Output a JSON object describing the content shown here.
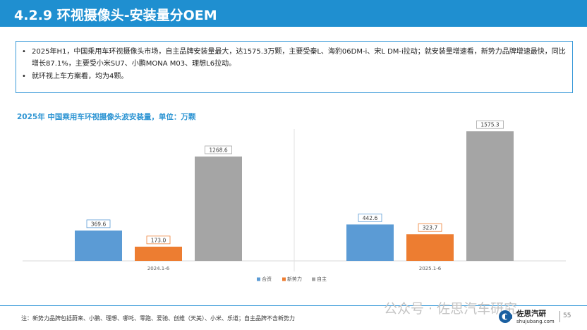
{
  "header": {
    "title": "4.2.9 环视摄像头-安装量分OEM"
  },
  "bullets": [
    {
      "dot": "•",
      "text": "2025年H1，中国乘用车环视摄像头市场，自主品牌安装量最大，达1575.3万颗，主要受秦L、海豹06DM-i、宋L DM-i拉动；就安装量增速看，新势力品牌增速最快，同比增长87.1%，主要受小米SU7、小鹏MONA M03、理想L6拉动。"
    },
    {
      "dot": "•",
      "text": "就环视上车方案看，均为4颗。"
    }
  ],
  "chart_data": {
    "type": "bar",
    "title": "2025年 中国乘用车环视摄像头波安装量，单位：万颗",
    "categories": [
      "2024.1-6",
      "2025.1-6"
    ],
    "series": [
      {
        "name": "合资",
        "color": "#5b9bd5",
        "values": [
          369.6,
          442.6
        ]
      },
      {
        "name": "新势力",
        "color": "#ed7d31",
        "values": [
          173.0,
          323.7
        ]
      },
      {
        "name": "自主",
        "color": "#a5a5a5",
        "values": [
          1268.6,
          1575.3
        ]
      }
    ],
    "value_labels": [
      [
        "369.6",
        "442.6"
      ],
      [
        "173.0",
        "323.7"
      ],
      [
        "1268.6",
        "1575.3"
      ]
    ],
    "ylim": [
      0,
      1800
    ],
    "grid": false,
    "legend_position": "bottom"
  },
  "footnote": "注：新势力品牌包括蔚来、小鹏、理想、哪吒、零跑、爱驰、创维（天美）、小米、乐道；自主品牌不含新势力",
  "watermark": "公众号 · 佐思汽车研究",
  "logo": {
    "name": "佐思汽研",
    "url": "shujubang.com"
  },
  "page_number": "55"
}
